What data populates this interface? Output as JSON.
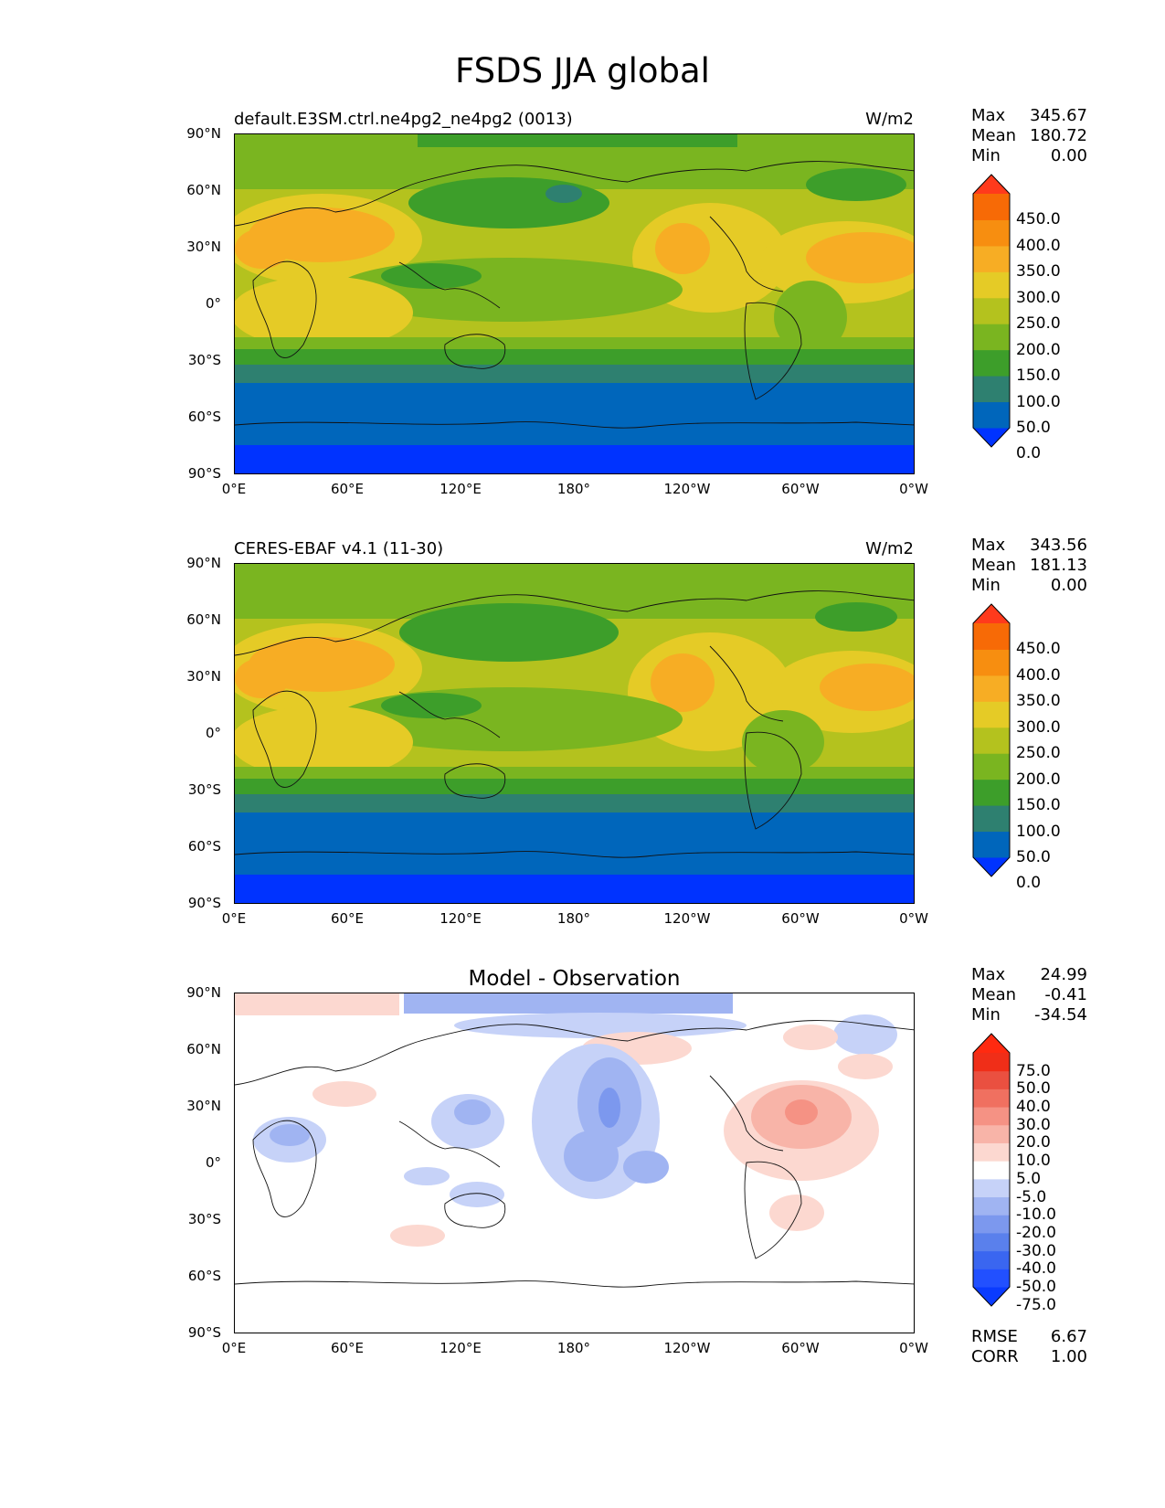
{
  "title": "FSDS JJA global",
  "lat_labels": [
    "90°N",
    "60°N",
    "30°N",
    "0°",
    "30°S",
    "60°S",
    "90°S"
  ],
  "lon_labels": [
    "0°E",
    "60°E",
    "120°E",
    "180°",
    "120°W",
    "60°W",
    "0°W"
  ],
  "panels": [
    {
      "left_title": "default.E3SM.ctrl.ne4pg2_ne4pg2 (0013)",
      "right_title": "W/m2",
      "center_title": "",
      "stats": [
        {
          "k": "Max",
          "v": "345.67"
        },
        {
          "k": "Mean",
          "v": "180.72"
        },
        {
          "k": "Min",
          "v": "0.00"
        }
      ],
      "colorbar_labels": [
        "450.0",
        "400.0",
        "350.0",
        "300.0",
        "250.0",
        "200.0",
        "150.0",
        "100.0",
        "50.0",
        "0.0"
      ],
      "colorbar_colors": [
        "#0033ff",
        "#0066bb",
        "#2e8070",
        "#3d9e2a",
        "#7ab520",
        "#b4c21e",
        "#e5cb26",
        "#f7ad24",
        "#f78e10",
        "#f76a06",
        "#ff3a1c"
      ]
    },
    {
      "left_title": "CERES-EBAF v4.1 (11-30)",
      "right_title": "W/m2",
      "center_title": "",
      "stats": [
        {
          "k": "Max",
          "v": "343.56"
        },
        {
          "k": "Mean",
          "v": "181.13"
        },
        {
          "k": "Min",
          "v": "0.00"
        }
      ],
      "colorbar_labels": [
        "450.0",
        "400.0",
        "350.0",
        "300.0",
        "250.0",
        "200.0",
        "150.0",
        "100.0",
        "50.0",
        "0.0"
      ],
      "colorbar_colors": [
        "#0033ff",
        "#0066bb",
        "#2e8070",
        "#3d9e2a",
        "#7ab520",
        "#b4c21e",
        "#e5cb26",
        "#f7ad24",
        "#f78e10",
        "#f76a06",
        "#ff3a1c"
      ]
    },
    {
      "left_title": "",
      "right_title": "",
      "center_title": "Model - Observation",
      "stats": [
        {
          "k": "Max",
          "v": "24.99"
        },
        {
          "k": "Mean",
          "v": "-0.41"
        },
        {
          "k": "Min",
          "v": "-34.54"
        }
      ],
      "colorbar_labels": [
        "75.0",
        "50.0",
        "40.0",
        "30.0",
        "20.0",
        "10.0",
        "5.0",
        "-5.0",
        "-10.0",
        "-20.0",
        "-30.0",
        "-40.0",
        "-50.0",
        "-75.0"
      ],
      "colorbar_colors": [
        "#0a3bff",
        "#2250ff",
        "#3a66f0",
        "#5a80ec",
        "#7c98ee",
        "#a0b4f2",
        "#c6d2f8",
        "#ffffff",
        "#fcd8d0",
        "#f8b4a8",
        "#f59284",
        "#f07060",
        "#ea5040",
        "#f02e18",
        "#ff2a10"
      ]
    }
  ],
  "bottom_stats": [
    {
      "k": "RMSE",
      "v": "6.67"
    },
    {
      "k": "CORR",
      "v": "1.00"
    }
  ]
}
